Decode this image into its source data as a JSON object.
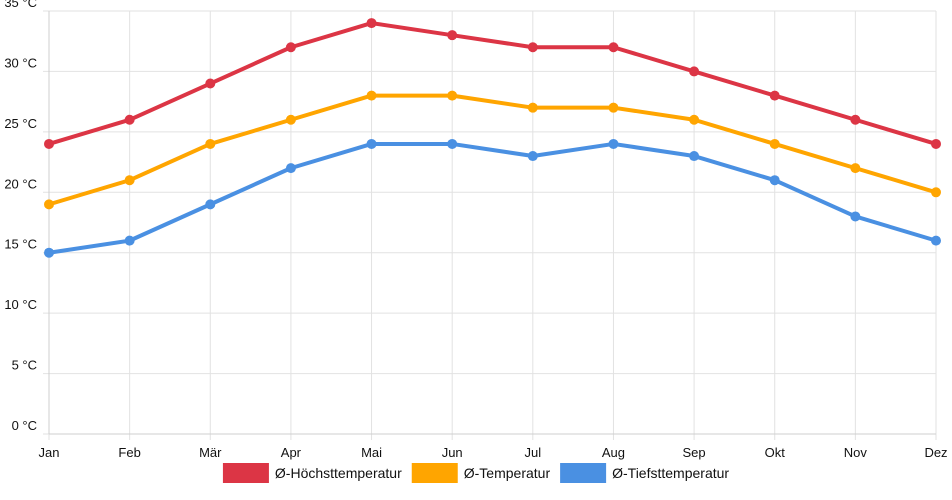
{
  "chart_data": {
    "type": "line",
    "title": "",
    "xlabel": "",
    "ylabel": "",
    "categories": [
      "Jan",
      "Feb",
      "Mär",
      "Apr",
      "Mai",
      "Jun",
      "Jul",
      "Aug",
      "Sep",
      "Okt",
      "Nov",
      "Dez"
    ],
    "ylim": [
      0,
      35
    ],
    "yticks": [
      0,
      5,
      10,
      15,
      20,
      25,
      30,
      35
    ],
    "ytick_labels": [
      "0 °C",
      "5 °C",
      "10 °C",
      "15 °C",
      "20 °C",
      "25 °C",
      "30 °C",
      "35 °C"
    ],
    "grid": true,
    "legend_position": "bottom-center",
    "series": [
      {
        "name": "Ø-Höchsttemperatur",
        "color": "#dc3545",
        "values": [
          24,
          26,
          29,
          32,
          34,
          33,
          32,
          32,
          30,
          28,
          26,
          24
        ]
      },
      {
        "name": "Ø-Temperatur",
        "color": "#ffa500",
        "values": [
          19,
          21,
          24,
          26,
          28,
          28,
          27,
          27,
          26,
          24,
          22,
          20
        ]
      },
      {
        "name": "Ø-Tiefsttemperatur",
        "color": "#4a90e2",
        "values": [
          15,
          16,
          19,
          22,
          24,
          24,
          23,
          24,
          23,
          21,
          18,
          16
        ]
      }
    ]
  }
}
